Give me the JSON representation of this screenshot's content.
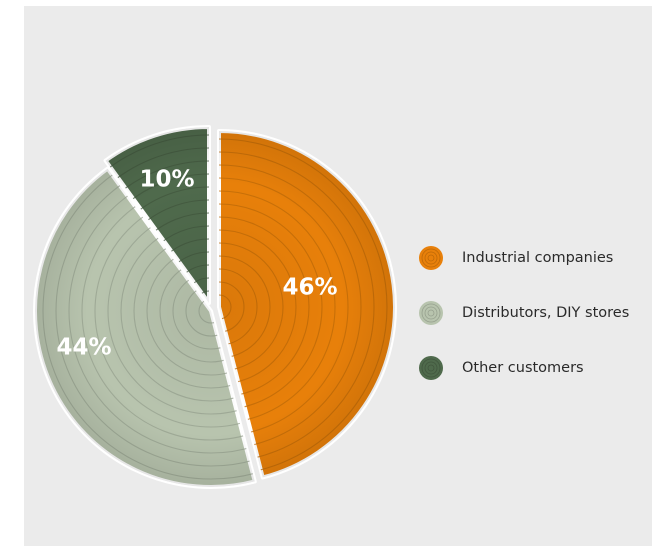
{
  "chart_data": {
    "type": "pie",
    "slices": [
      {
        "label": "Industrial companies",
        "value": 46,
        "display": "46%",
        "color": "#e8800a"
      },
      {
        "label": "Distributors, DIY stores",
        "value": 44,
        "display": "44%",
        "color": "#b8c4ae"
      },
      {
        "label": "Other customers",
        "value": 10,
        "display": "10%",
        "color": "#4f6a4c"
      }
    ],
    "start": "12 o'clock",
    "direction": "clockwise",
    "legend_position": "right",
    "texture": "tree rings"
  }
}
